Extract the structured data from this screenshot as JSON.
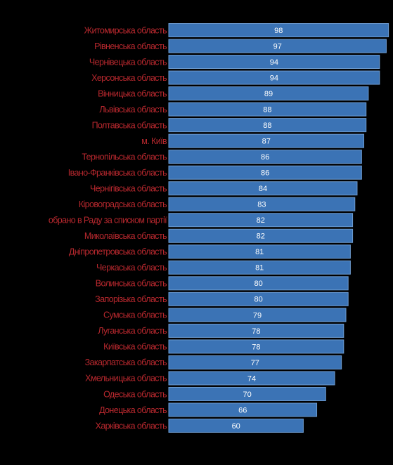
{
  "chart_data": {
    "type": "bar",
    "orientation": "horizontal",
    "categories": [
      "Житомирська область",
      "Рівненська область",
      "Чернівецька область",
      "Херсонська область",
      "Вінницька область",
      "Львівська область",
      "Полтавська область",
      "м. Київ",
      "Тернопільська область",
      "Івано-Франківська область",
      "Чернігівська область",
      "Кіровоградська область",
      "обрано в Раду за списком партії",
      "Миколаївська область",
      "Дніпропетровська область",
      "Черкаська область",
      "Волинська область",
      "Запорізька область",
      "Сумська область",
      "Луганська область",
      "Київська область",
      "Закарпатська область",
      "Хмельницька область",
      "Одеська область",
      "Донецька область",
      "Харківська область"
    ],
    "values": [
      98,
      97,
      94,
      94,
      89,
      88,
      88,
      87,
      86,
      86,
      84,
      83,
      82,
      82,
      81,
      81,
      80,
      80,
      79,
      78,
      78,
      77,
      74,
      70,
      66,
      60
    ],
    "color": "#3b73b5",
    "label_color": "#b8282e",
    "xlim": [
      0,
      100
    ]
  }
}
